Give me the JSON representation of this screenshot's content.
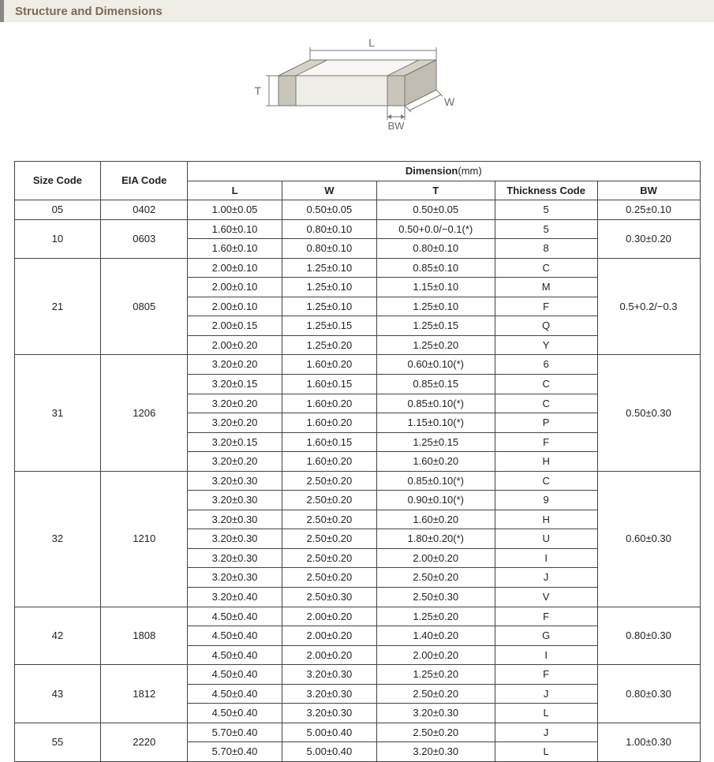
{
  "header": {
    "title": "Structure and Dimensions"
  },
  "diagram": {
    "labels": {
      "L": "L",
      "W": "W",
      "T": "T",
      "BW": "BW"
    },
    "stroke": "#777777",
    "fill_top": "#f7f6f3",
    "fill_side": "#e5e2da",
    "fill_front": "#efede7",
    "fill_terminal": "#c9c5bb",
    "label_color": "#6b6b6b",
    "label_fontsize": 14
  },
  "table": {
    "headers": {
      "size": "Size Code",
      "eia": "EIA Code",
      "dim": "Dimension",
      "dim_unit": "(mm)",
      "L": "L",
      "W": "W",
      "T": "T",
      "TC": "Thickness  Code",
      "BW": "BW"
    },
    "groups": [
      {
        "size": "05",
        "eia": "0402",
        "bw": "0.25±0.10",
        "rows": [
          {
            "L": "1.00±0.05",
            "W": "0.50±0.05",
            "T": "0.50±0.05",
            "TC": "5"
          }
        ]
      },
      {
        "size": "10",
        "eia": "0603",
        "bw": "0.30±0.20",
        "rows": [
          {
            "L": "1.60±0.10",
            "W": "0.80±0.10",
            "T": "0.50+0.0/−0.1(*)",
            "TC": "5"
          },
          {
            "L": "1.60±0.10",
            "W": "0.80±0.10",
            "T": "0.80±0.10",
            "TC": "8"
          }
        ]
      },
      {
        "size": "21",
        "eia": "0805",
        "bw": "0.5+0.2/−0.3",
        "rows": [
          {
            "L": "2.00±0.10",
            "W": "1.25±0.10",
            "T": "0.85±0.10",
            "TC": "C"
          },
          {
            "L": "2.00±0.10",
            "W": "1.25±0.10",
            "T": "1.15±0.10",
            "TC": "M"
          },
          {
            "L": "2.00±0.10",
            "W": "1.25±0.10",
            "T": "1.25±0.10",
            "TC": "F"
          },
          {
            "L": "2.00±0.15",
            "W": "1.25±0.15",
            "T": "1.25±0.15",
            "TC": "Q"
          },
          {
            "L": "2.00±0.20",
            "W": "1.25±0.20",
            "T": "1.25±0.20",
            "TC": "Y"
          }
        ]
      },
      {
        "size": "31",
        "eia": "1206",
        "bw": "0.50±0.30",
        "rows": [
          {
            "L": "3.20±0.20",
            "W": "1.60±0.20",
            "T": "0.60±0.10(*)",
            "TC": "6"
          },
          {
            "L": "3.20±0.15",
            "W": "1.60±0.15",
            "T": "0.85±0.15",
            "TC": "C"
          },
          {
            "L": "3.20±0.20",
            "W": "1.60±0.20",
            "T": "0.85±0.10(*)",
            "TC": "C"
          },
          {
            "L": "3.20±0.20",
            "W": "1.60±0.20",
            "T": "1.15±0.10(*)",
            "TC": "P"
          },
          {
            "L": "3.20±0.15",
            "W": "1.60±0.15",
            "T": "1.25±0.15",
            "TC": "F"
          },
          {
            "L": "3.20±0.20",
            "W": "1.60±0.20",
            "T": "1.60±0.20",
            "TC": "H"
          }
        ]
      },
      {
        "size": "32",
        "eia": "1210",
        "bw": "0.60±0.30",
        "rows": [
          {
            "L": "3.20±0.30",
            "W": "2.50±0.20",
            "T": "0.85±0.10(*)",
            "TC": "C"
          },
          {
            "L": "3.20±0.30",
            "W": "2.50±0.20",
            "T": "0.90±0.10(*)",
            "TC": "9"
          },
          {
            "L": "3.20±0.30",
            "W": "2.50±0.20",
            "T": "1.60±0.20",
            "TC": "H"
          },
          {
            "L": "3.20±0.30",
            "W": "2.50±0.20",
            "T": "1.80±0.20(*)",
            "TC": "U"
          },
          {
            "L": "3.20±0.30",
            "W": "2.50±0.20",
            "T": "2.00±0.20",
            "TC": "I"
          },
          {
            "L": "3.20±0.30",
            "W": "2.50±0.20",
            "T": "2.50±0.20",
            "TC": "J"
          },
          {
            "L": "3.20±0.40",
            "W": "2.50±0.30",
            "T": "2.50±0.30",
            "TC": "V"
          }
        ]
      },
      {
        "size": "42",
        "eia": "1808",
        "bw": "0.80±0.30",
        "rows": [
          {
            "L": "4.50±0.40",
            "W": "2.00±0.20",
            "T": "1.25±0.20",
            "TC": "F"
          },
          {
            "L": "4.50±0.40",
            "W": "2.00±0.20",
            "T": "1.40±0.20",
            "TC": "G"
          },
          {
            "L": "4.50±0.40",
            "W": "2.00±0.20",
            "T": "2.00±0.20",
            "TC": "I"
          }
        ]
      },
      {
        "size": "43",
        "eia": "1812",
        "bw": "0.80±0.30",
        "rows": [
          {
            "L": "4.50±0.40",
            "W": "3.20±0.30",
            "T": "1.25±0.20",
            "TC": "F"
          },
          {
            "L": "4.50±0.40",
            "W": "3.20±0.30",
            "T": "2.50±0.20",
            "TC": "J"
          },
          {
            "L": "4.50±0.40",
            "W": "3.20±0.30",
            "T": "3.20±0.30",
            "TC": "L"
          }
        ]
      },
      {
        "size": "55",
        "eia": "2220",
        "bw": "1.00±0.30",
        "rows": [
          {
            "L": "5.70±0.40",
            "W": "5.00±0.40",
            "T": "2.50±0.20",
            "TC": "J"
          },
          {
            "L": "5.70±0.40",
            "W": "5.00±0.40",
            "T": "3.20±0.30",
            "TC": "L"
          }
        ]
      }
    ]
  }
}
